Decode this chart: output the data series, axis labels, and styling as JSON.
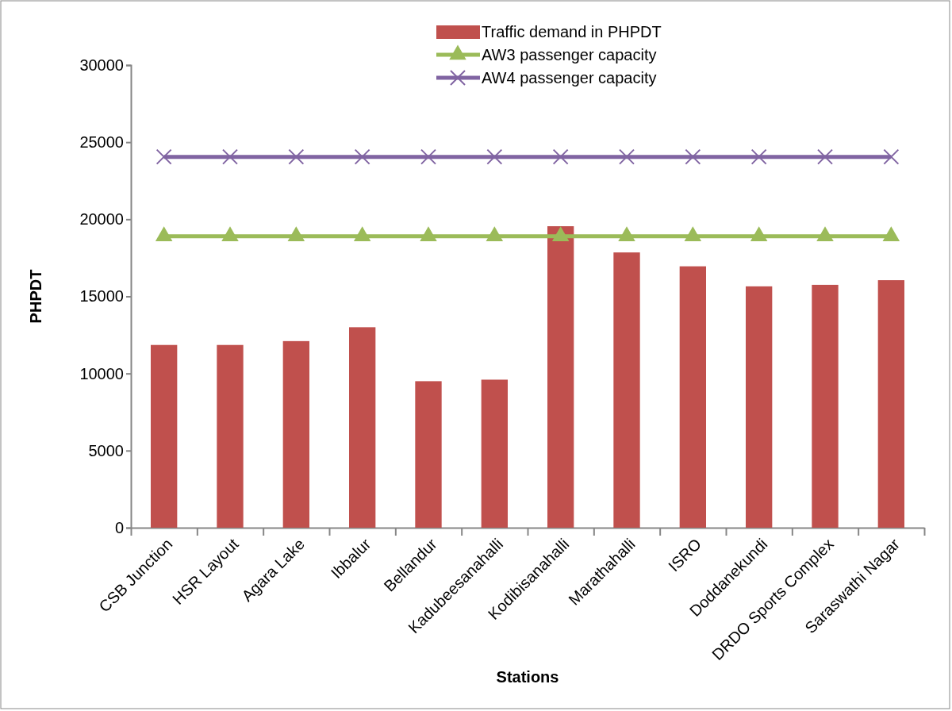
{
  "chart_data": {
    "type": "bar",
    "xlabel": "Stations",
    "ylabel": "PHPDT",
    "categories": [
      "CSB Junction",
      "HSR Layout",
      "Agara Lake",
      "Ibbalur",
      "Bellandur",
      "Kadubeesanahalli",
      "Kodibisanahalli",
      "Marathahalli",
      "ISRO",
      "Doddanekundi",
      "DRDO Sports Complex",
      "Saraswathi Nagar"
    ],
    "series": [
      {
        "name": "Traffic demand in PHPDT",
        "color": "#c0504d",
        "values": [
          11850,
          11850,
          12100,
          13000,
          9500,
          9600,
          19550,
          17850,
          16950,
          15650,
          15750,
          16050
        ]
      },
      {
        "name": "AW3 passenger capacity",
        "type": "line",
        "color": "#9bbb59",
        "marker": "triangle",
        "values": [
          18900,
          18900,
          18900,
          18900,
          18900,
          18900,
          18900,
          18900,
          18900,
          18900,
          18900,
          18900
        ]
      },
      {
        "name": "AW4 passenger capacity",
        "type": "line",
        "color": "#8064a2",
        "marker": "cross",
        "values": [
          24050,
          24050,
          24050,
          24050,
          24050,
          24050,
          24050,
          24050,
          24050,
          24050,
          24050,
          24050
        ]
      }
    ],
    "ylim": [
      0,
      30000
    ],
    "yticks": [
      0,
      5000,
      10000,
      15000,
      20000,
      25000,
      30000
    ],
    "grid": false,
    "legend": "top"
  }
}
